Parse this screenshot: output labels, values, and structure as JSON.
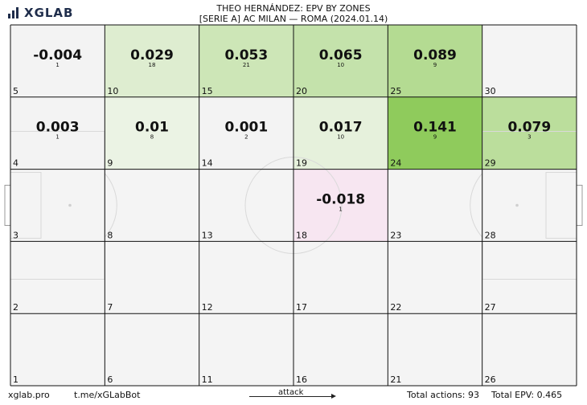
{
  "brand": {
    "logo_text": "XGLAB",
    "colors": {
      "navy": "#1f2d4b",
      "red": "#d61f3a"
    }
  },
  "header": {
    "title": "THEO HERNÁNDEZ: EPV BY ZONES",
    "subtitle": "[SERIE A] AC MILAN —  ROMA (2024.01.14)"
  },
  "footer": {
    "site": "xglab.pro",
    "bot": "t.me/xGLabBot",
    "attack_label": "attack",
    "total_actions": "Total actions: 93",
    "total_epv": "Total EPV: 0.465"
  },
  "chart_data": {
    "type": "heatmap",
    "title": "THEO HERNÁNDEZ: EPV BY ZONES",
    "grid": {
      "columns": 6,
      "rows": 5
    },
    "zones": [
      {
        "zone": 5,
        "col": 1,
        "row": 1,
        "epv": "-0.004",
        "count": "1"
      },
      {
        "zone": 10,
        "col": 2,
        "row": 1,
        "epv": "0.029",
        "count": "18"
      },
      {
        "zone": 15,
        "col": 3,
        "row": 1,
        "epv": "0.053",
        "count": "21"
      },
      {
        "zone": 20,
        "col": 4,
        "row": 1,
        "epv": "0.065",
        "count": "10"
      },
      {
        "zone": 25,
        "col": 5,
        "row": 1,
        "epv": "0.089",
        "count": "9"
      },
      {
        "zone": 30,
        "col": 6,
        "row": 1,
        "epv": null,
        "count": null
      },
      {
        "zone": 4,
        "col": 1,
        "row": 2,
        "epv": "0.003",
        "count": "1"
      },
      {
        "zone": 9,
        "col": 2,
        "row": 2,
        "epv": "0.01",
        "count": "8"
      },
      {
        "zone": 14,
        "col": 3,
        "row": 2,
        "epv": "0.001",
        "count": "2"
      },
      {
        "zone": 19,
        "col": 4,
        "row": 2,
        "epv": "0.017",
        "count": "10"
      },
      {
        "zone": 24,
        "col": 5,
        "row": 2,
        "epv": "0.141",
        "count": "9"
      },
      {
        "zone": 29,
        "col": 6,
        "row": 2,
        "epv": "0.079",
        "count": "3"
      },
      {
        "zone": 3,
        "col": 1,
        "row": 3,
        "epv": null,
        "count": null
      },
      {
        "zone": 8,
        "col": 2,
        "row": 3,
        "epv": null,
        "count": null
      },
      {
        "zone": 13,
        "col": 3,
        "row": 3,
        "epv": null,
        "count": null
      },
      {
        "zone": 18,
        "col": 4,
        "row": 3,
        "epv": "-0.018",
        "count": "1"
      },
      {
        "zone": 23,
        "col": 5,
        "row": 3,
        "epv": null,
        "count": null
      },
      {
        "zone": 28,
        "col": 6,
        "row": 3,
        "epv": null,
        "count": null
      },
      {
        "zone": 2,
        "col": 1,
        "row": 4,
        "epv": null,
        "count": null
      },
      {
        "zone": 7,
        "col": 2,
        "row": 4,
        "epv": null,
        "count": null
      },
      {
        "zone": 12,
        "col": 3,
        "row": 4,
        "epv": null,
        "count": null
      },
      {
        "zone": 17,
        "col": 4,
        "row": 4,
        "epv": null,
        "count": null
      },
      {
        "zone": 22,
        "col": 5,
        "row": 4,
        "epv": null,
        "count": null
      },
      {
        "zone": 27,
        "col": 6,
        "row": 4,
        "epv": null,
        "count": null
      },
      {
        "zone": 1,
        "col": 1,
        "row": 5,
        "epv": null,
        "count": null
      },
      {
        "zone": 6,
        "col": 2,
        "row": 5,
        "epv": null,
        "count": null
      },
      {
        "zone": 11,
        "col": 3,
        "row": 5,
        "epv": null,
        "count": null
      },
      {
        "zone": 16,
        "col": 4,
        "row": 5,
        "epv": null,
        "count": null
      },
      {
        "zone": 21,
        "col": 5,
        "row": 5,
        "epv": null,
        "count": null
      },
      {
        "zone": 26,
        "col": 6,
        "row": 5,
        "epv": null,
        "count": null
      }
    ],
    "colors": {
      "empty": "#f4f4f4",
      "positive_max": "#8fcb5c",
      "negative": "#f7e6f1"
    },
    "scale_max": 0.141
  }
}
